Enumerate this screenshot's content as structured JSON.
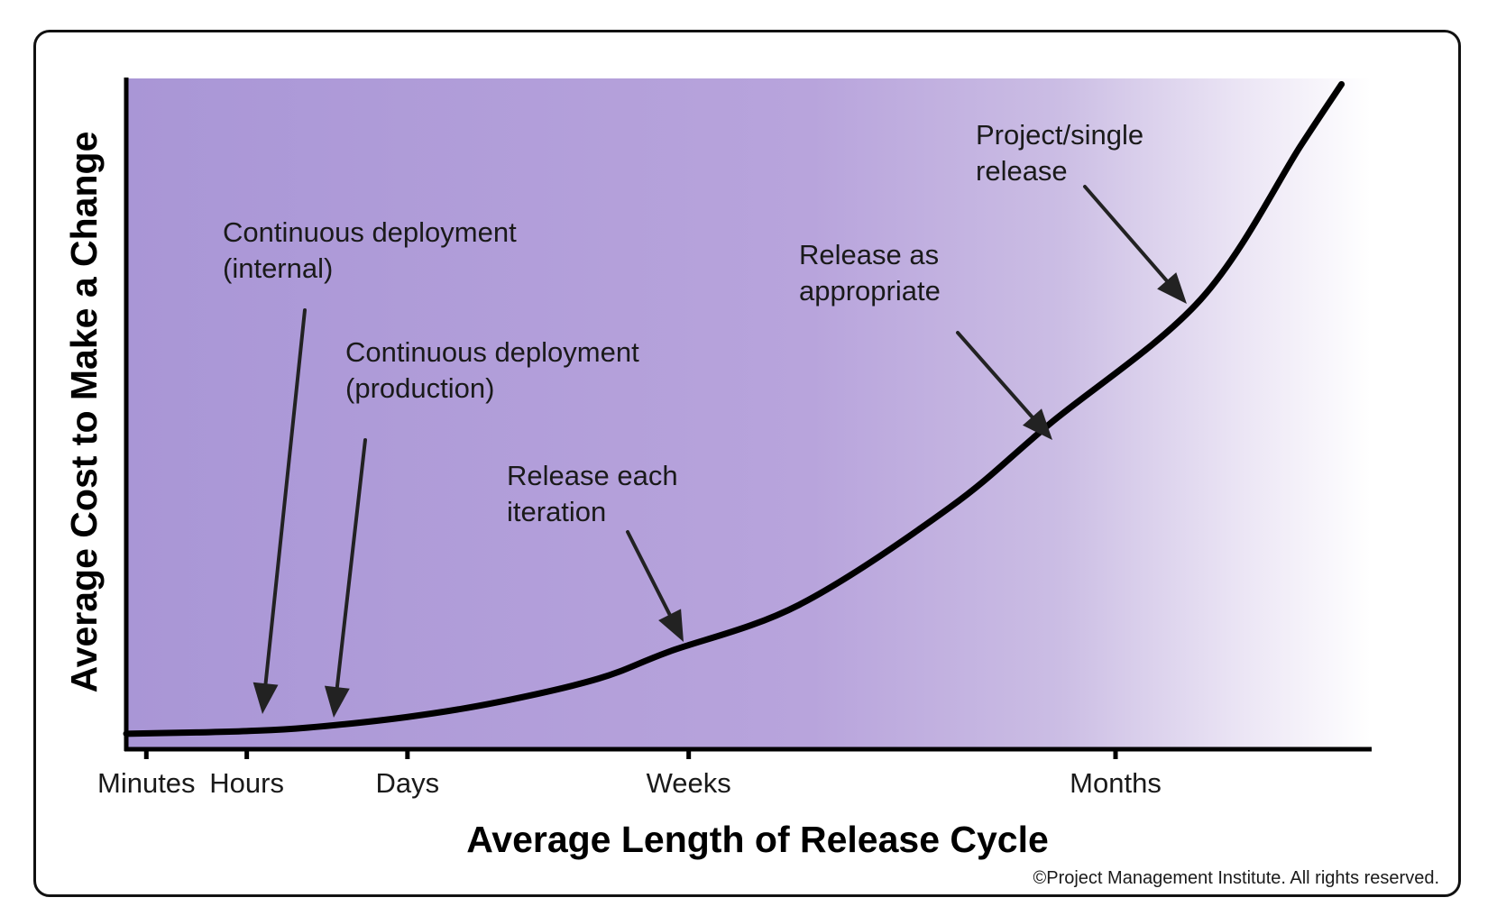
{
  "chart_data": {
    "type": "line",
    "title": "",
    "xlabel": "Average Length of Release Cycle",
    "ylabel": "Average Cost to Make a Change",
    "x_ticks": [
      "Minutes",
      "Hours",
      "Days",
      "Weeks",
      "Months"
    ],
    "x_tick_positions": [
      0,
      1,
      2.6,
      5.4,
      9.65
    ],
    "xlim": [
      -0.2,
      12.2
    ],
    "ylim": [
      0,
      100
    ],
    "grid": false,
    "series": [
      {
        "x": [
          -0.2,
          0.5,
          1.0,
          1.6,
          2.6,
          3.5,
          4.5,
          5.2,
          6.5,
          8.0,
          9.0,
          10.5,
          11.5,
          11.9
        ],
        "y": [
          2.3,
          2.5,
          2.7,
          3.2,
          4.8,
          7.0,
          10.5,
          14.5,
          21.5,
          36.0,
          48.5,
          67.0,
          90.0,
          99.0
        ]
      }
    ],
    "annotations": [
      {
        "lines": [
          "Continuous deployment",
          "(internal)"
        ],
        "points_to_x": 0.85
      },
      {
        "lines": [
          "Continuous deployment",
          "(production)"
        ],
        "points_to_x": 1.6
      },
      {
        "lines": [
          "Release each",
          "iteration"
        ],
        "points_to_x": 5.15
      },
      {
        "lines": [
          "Release as",
          "appropriate"
        ],
        "points_to_x": 9.05
      },
      {
        "lines": [
          "Project/single",
          "release"
        ],
        "points_to_x": 10.4
      }
    ],
    "background": {
      "type": "horizontal-gradient",
      "colors": [
        "#a996d6",
        "#b8a4dc",
        "#cbbde4",
        "#ece6f5",
        "#ffffff"
      ]
    },
    "curve_color": "#000000",
    "arrow_color": "#222222"
  },
  "copyright": "©Project Management Institute. All rights reserved."
}
